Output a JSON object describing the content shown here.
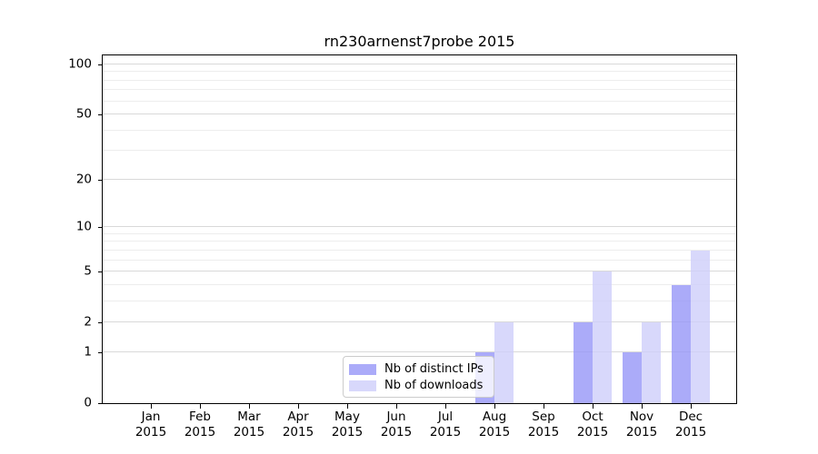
{
  "figure": {
    "background": "#ffffff"
  },
  "chart_data": {
    "type": "bar",
    "title": "rn230arnenst7probe 2015",
    "categories": [
      "Jan",
      "Feb",
      "Mar",
      "Apr",
      "May",
      "Jun",
      "Jul",
      "Aug",
      "Sep",
      "Oct",
      "Nov",
      "Dec"
    ],
    "year_label": "2015",
    "series": [
      {
        "name": "Nb of distinct IPs",
        "color": "rgba(150,150,247,0.8)",
        "values": [
          0,
          0,
          0,
          0,
          0,
          0,
          0,
          1,
          0,
          2,
          1,
          4
        ]
      },
      {
        "name": "Nb of downloads",
        "color": "rgba(206,206,250,0.8)",
        "values": [
          0,
          0,
          0,
          0,
          0,
          0,
          0,
          2,
          0,
          5,
          2,
          7
        ]
      }
    ],
    "xlabel": "",
    "ylabel": "",
    "yscale": "log1p",
    "ylim": [
      0,
      113
    ],
    "yticks": [
      0,
      1,
      2,
      5,
      10,
      20,
      50,
      100
    ],
    "yticks_minor": [
      3,
      4,
      6,
      7,
      8,
      9,
      30,
      40,
      60,
      70,
      80,
      90
    ],
    "grid": true,
    "legend_position": "inside-lower-center"
  }
}
